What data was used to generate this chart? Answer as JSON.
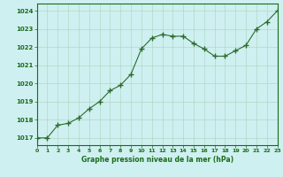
{
  "x": [
    0,
    1,
    2,
    3,
    4,
    5,
    6,
    7,
    8,
    9,
    10,
    11,
    12,
    13,
    14,
    15,
    16,
    17,
    18,
    19,
    20,
    21,
    22,
    23
  ],
  "y": [
    1017.0,
    1017.0,
    1017.7,
    1017.8,
    1018.1,
    1018.6,
    1019.0,
    1019.6,
    1019.9,
    1020.5,
    1021.9,
    1022.5,
    1022.7,
    1022.6,
    1022.6,
    1022.2,
    1021.9,
    1021.5,
    1021.5,
    1021.8,
    1022.1,
    1023.0,
    1023.4,
    1024.0
  ],
  "xlim": [
    0,
    23
  ],
  "ylim": [
    1016.6,
    1024.4
  ],
  "yticks": [
    1017,
    1018,
    1019,
    1020,
    1021,
    1022,
    1023,
    1024
  ],
  "xticks": [
    0,
    1,
    2,
    3,
    4,
    5,
    6,
    7,
    8,
    9,
    10,
    11,
    12,
    13,
    14,
    15,
    16,
    17,
    18,
    19,
    20,
    21,
    22,
    23
  ],
  "line_color": "#2d6a2d",
  "marker_color": "#2d6a2d",
  "bg_color": "#cff0f0",
  "grid_color": "#b0d8c8",
  "xlabel": "Graphe pression niveau de la mer (hPa)",
  "xlabel_color": "#1a6b1a",
  "tick_color": "#1a6b1a",
  "marker": "+",
  "markersize": 4,
  "linewidth": 0.8
}
